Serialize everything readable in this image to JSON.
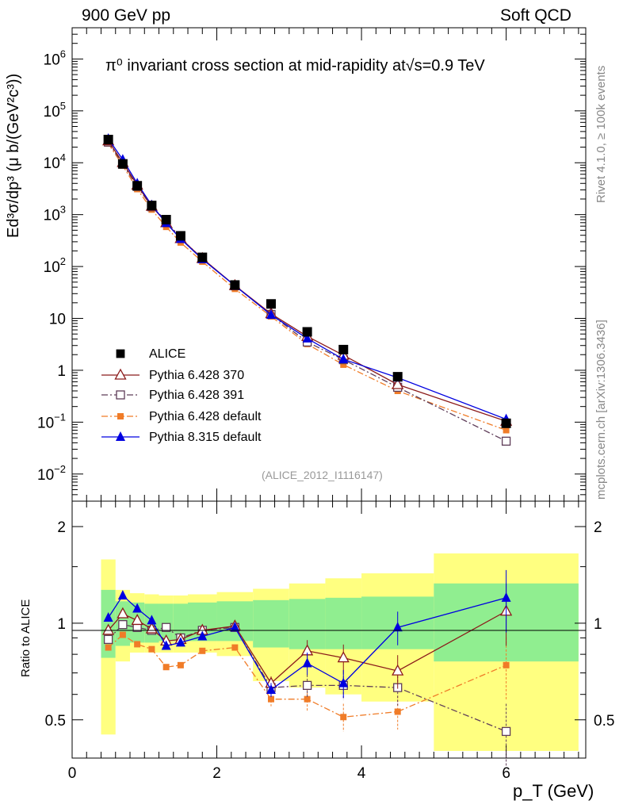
{
  "header": {
    "left": "900 GeV pp",
    "right": "Soft QCD"
  },
  "side_text": {
    "rivet": "Rivet 4.1.0, ≥ 100k events",
    "mcplots": "mcplots.cern.ch [arXiv:1306.3436]"
  },
  "analysis_tag": "(ALICE_2012_I1116147)",
  "chart_data": [
    {
      "type": "scatter",
      "title": "π⁰ invariant cross section at mid-rapidity at√s=0.9 TeV",
      "xlabel": "p_T (GeV)",
      "ylabel": "Ed³σ/dp³ (μ b/(GeV²c³))",
      "yscale": "log",
      "xlim": [
        0,
        7.1
      ],
      "ylim": [
        0.003,
        4000000
      ],
      "y_ticks": [
        "10⁻²",
        "10⁻¹",
        "1",
        "10",
        "10²",
        "10³",
        "10⁴",
        "10⁵",
        "10⁶"
      ],
      "x": [
        0.5,
        0.7,
        0.9,
        1.1,
        1.3,
        1.5,
        1.8,
        2.25,
        2.75,
        3.25,
        3.75,
        4.5,
        6.0
      ],
      "series": [
        {
          "name": "ALICE",
          "color": "#000000",
          "marker": "filled-square",
          "values": [
            28000,
            9500,
            3600,
            1500,
            800,
            390,
            150,
            44,
            19,
            5.5,
            2.5,
            0.75,
            0.095
          ]
        },
        {
          "name": "Pythia 6.428 370",
          "color": "#8b1a1a",
          "marker": "open-triangle",
          "line": "solid",
          "values": [
            26500,
            10100,
            3700,
            1450,
            700,
            345,
            143,
            43,
            12.3,
            4.5,
            1.95,
            0.53,
            0.104
          ]
        },
        {
          "name": "Pythia 6.428 391",
          "color": "#5e3c58",
          "marker": "open-square",
          "line": "dashdot",
          "values": [
            25000,
            9400,
            3500,
            1420,
            770,
            350,
            143,
            42.5,
            11.9,
            3.5,
            1.6,
            0.47,
            0.043
          ]
        },
        {
          "name": "Pythia 6.428 default",
          "color": "#f07c28",
          "marker": "filled-small-square",
          "line": "dashdot",
          "values": [
            23500,
            8800,
            3100,
            1250,
            580,
            290,
            124,
            37,
            10.9,
            3.2,
            1.28,
            0.4,
            0.07
          ]
        },
        {
          "name": "Pythia 8.315 default",
          "color": "#0000e0",
          "marker": "filled-triangle",
          "line": "solid",
          "values": [
            29000,
            11500,
            4000,
            1520,
            690,
            340,
            138,
            42.8,
            11.7,
            4.1,
            1.63,
            0.72,
            0.114
          ]
        }
      ]
    },
    {
      "type": "line",
      "ylabel": "Ratio to ALICE",
      "xlabel": "p_T (GeV)",
      "xlim": [
        0,
        7.1
      ],
      "ylim": [
        0.38,
        2.4
      ],
      "x_ticks": [
        "0",
        "2",
        "4",
        "6"
      ],
      "y_ticks": [
        "0.5",
        "1",
        "2"
      ],
      "x": [
        0.5,
        0.7,
        0.9,
        1.1,
        1.3,
        1.5,
        1.8,
        2.25,
        2.75,
        3.25,
        3.75,
        4.5,
        6.0
      ],
      "uncertainty_bands": {
        "edges": [
          0.4,
          0.6,
          0.8,
          1.0,
          1.2,
          1.4,
          1.6,
          2.0,
          2.5,
          3.0,
          3.5,
          4.0,
          5.0,
          7.0
        ],
        "inner_color": "#90ee90",
        "outer_color": "#ffff80",
        "inner_lo": [
          0.78,
          0.85,
          0.87,
          0.87,
          0.88,
          0.88,
          0.88,
          0.88,
          0.84,
          0.83,
          0.83,
          0.83,
          0.76
        ],
        "inner_hi": [
          1.27,
          1.17,
          1.16,
          1.15,
          1.15,
          1.15,
          1.16,
          1.17,
          1.18,
          1.19,
          1.2,
          1.21,
          1.33
        ],
        "outer_lo": [
          0.45,
          0.76,
          0.81,
          0.81,
          0.81,
          0.81,
          0.81,
          0.79,
          0.66,
          0.63,
          0.6,
          0.57,
          0.4
        ],
        "outer_hi": [
          1.58,
          1.27,
          1.24,
          1.23,
          1.22,
          1.22,
          1.23,
          1.25,
          1.28,
          1.33,
          1.38,
          1.43,
          1.65
        ]
      },
      "series": [
        {
          "name": "Pythia 6.428 370",
          "values": [
            0.95,
            1.07,
            1.02,
            0.96,
            0.88,
            0.89,
            0.95,
            0.98,
            0.65,
            0.82,
            0.78,
            0.71,
            1.09
          ]
        },
        {
          "name": "Pythia 6.428 391",
          "values": [
            0.89,
            0.99,
            0.97,
            0.95,
            0.97,
            0.9,
            0.95,
            0.97,
            0.63,
            0.64,
            0.64,
            0.63,
            0.46
          ]
        },
        {
          "name": "Pythia 6.428 default",
          "values": [
            0.84,
            0.92,
            0.86,
            0.83,
            0.73,
            0.74,
            0.82,
            0.84,
            0.58,
            0.58,
            0.51,
            0.53,
            0.74
          ]
        },
        {
          "name": "Pythia 8.315 default",
          "values": [
            1.04,
            1.22,
            1.11,
            1.02,
            0.85,
            0.87,
            0.91,
            0.97,
            0.62,
            0.75,
            0.65,
            0.97,
            1.2
          ]
        }
      ],
      "error_fraction": [
        0,
        0,
        0,
        0,
        0,
        0,
        0,
        0,
        0.05,
        0.08,
        0.1,
        0.12,
        0.22
      ]
    }
  ]
}
